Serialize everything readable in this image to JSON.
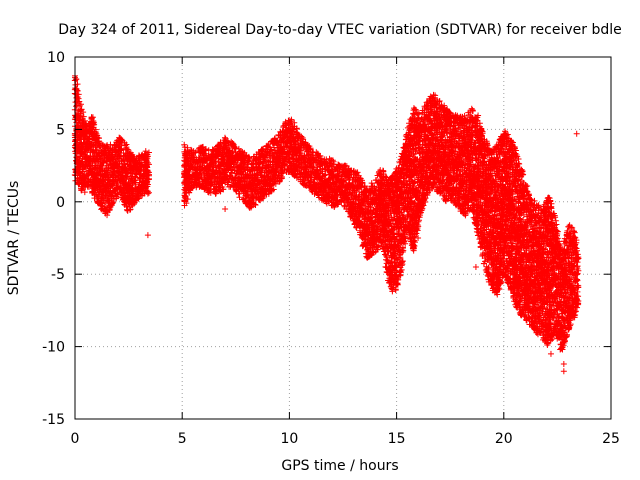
{
  "chart_data": {
    "type": "scatter",
    "title": "Day 324 of 2011, Sidereal Day-to-day VTEC variation (SDTVAR) for receiver bdle",
    "xlabel": "GPS time / hours",
    "ylabel": "SDTVAR / TECUs",
    "xlim": [
      0,
      25
    ],
    "ylim": [
      -15,
      10
    ],
    "x_ticks": [
      0,
      5,
      10,
      15,
      20,
      25
    ],
    "y_ticks": [
      -15,
      -10,
      -5,
      0,
      5,
      10
    ],
    "x_tick_labels": [
      "0",
      "5",
      "10",
      "15",
      "20",
      "25"
    ],
    "y_tick_labels": [
      "-15",
      "-10",
      "-5",
      "0",
      "5",
      "10"
    ],
    "grid": true,
    "legend": "none",
    "marker": "+",
    "color": "#ff0000",
    "series": [
      {
        "name": "SDTVAR",
        "envelope": [
          {
            "x": 0.0,
            "low": 1.5,
            "high": 9.0
          },
          {
            "x": 0.2,
            "low": 1.0,
            "high": 7.5
          },
          {
            "x": 0.4,
            "low": 0.5,
            "high": 6.0
          },
          {
            "x": 0.6,
            "low": 1.0,
            "high": 5.0
          },
          {
            "x": 0.8,
            "low": 0.5,
            "high": 6.0
          },
          {
            "x": 1.0,
            "low": 0.0,
            "high": 5.0
          },
          {
            "x": 1.2,
            "low": -0.5,
            "high": 4.0
          },
          {
            "x": 1.5,
            "low": -1.0,
            "high": 4.0
          },
          {
            "x": 1.8,
            "low": 0.0,
            "high": 4.0
          },
          {
            "x": 2.1,
            "low": 0.5,
            "high": 4.5
          },
          {
            "x": 2.4,
            "low": -0.5,
            "high": 4.0
          },
          {
            "x": 2.6,
            "low": -1.0,
            "high": 3.5
          },
          {
            "x": 2.8,
            "low": 0.0,
            "high": 3.0
          },
          {
            "x": 3.2,
            "low": 0.5,
            "high": 3.5
          },
          {
            "x": 3.4,
            "low": 1.0,
            "high": 3.5
          },
          {
            "x": 5.1,
            "low": -0.5,
            "high": 4.0
          },
          {
            "x": 5.5,
            "low": 1.0,
            "high": 3.5
          },
          {
            "x": 5.9,
            "low": 1.0,
            "high": 4.0
          },
          {
            "x": 6.3,
            "low": 0.5,
            "high": 3.5
          },
          {
            "x": 6.7,
            "low": 0.5,
            "high": 4.0
          },
          {
            "x": 7.0,
            "low": 1.0,
            "high": 4.5
          },
          {
            "x": 7.4,
            "low": 1.0,
            "high": 4.0
          },
          {
            "x": 7.8,
            "low": 0.0,
            "high": 3.5
          },
          {
            "x": 8.2,
            "low": -0.5,
            "high": 3.0
          },
          {
            "x": 8.6,
            "low": 0.0,
            "high": 3.5
          },
          {
            "x": 9.0,
            "low": 0.5,
            "high": 4.0
          },
          {
            "x": 9.4,
            "low": 1.0,
            "high": 4.5
          },
          {
            "x": 9.8,
            "low": 2.0,
            "high": 5.5
          },
          {
            "x": 10.1,
            "low": 2.0,
            "high": 5.8
          },
          {
            "x": 10.4,
            "low": 1.5,
            "high": 5.0
          },
          {
            "x": 10.8,
            "low": 1.0,
            "high": 4.0
          },
          {
            "x": 11.2,
            "low": 0.5,
            "high": 3.5
          },
          {
            "x": 11.6,
            "low": 0.0,
            "high": 3.0
          },
          {
            "x": 12.0,
            "low": -0.5,
            "high": 3.0
          },
          {
            "x": 12.4,
            "low": 0.0,
            "high": 2.5
          },
          {
            "x": 12.8,
            "low": -1.0,
            "high": 2.5
          },
          {
            "x": 13.2,
            "low": -2.0,
            "high": 2.0
          },
          {
            "x": 13.6,
            "low": -4.0,
            "high": 1.0
          },
          {
            "x": 14.0,
            "low": -3.5,
            "high": 1.5
          },
          {
            "x": 14.3,
            "low": -3.0,
            "high": 2.5
          },
          {
            "x": 14.6,
            "low": -5.5,
            "high": 1.5
          },
          {
            "x": 14.9,
            "low": -6.5,
            "high": 2.0
          },
          {
            "x": 15.2,
            "low": -5.0,
            "high": 3.0
          },
          {
            "x": 15.5,
            "low": -2.0,
            "high": 5.0
          },
          {
            "x": 15.8,
            "low": -3.5,
            "high": 6.5
          },
          {
            "x": 16.1,
            "low": -1.0,
            "high": 6.0
          },
          {
            "x": 16.4,
            "low": 0.0,
            "high": 7.0
          },
          {
            "x": 16.7,
            "low": 1.0,
            "high": 7.5
          },
          {
            "x": 17.0,
            "low": 0.5,
            "high": 7.0
          },
          {
            "x": 17.3,
            "low": 0.0,
            "high": 6.5
          },
          {
            "x": 17.6,
            "low": 0.0,
            "high": 6.0
          },
          {
            "x": 17.9,
            "low": -0.5,
            "high": 6.0
          },
          {
            "x": 18.2,
            "low": -1.0,
            "high": 6.0
          },
          {
            "x": 18.5,
            "low": -0.5,
            "high": 6.5
          },
          {
            "x": 18.8,
            "low": -2.5,
            "high": 6.0
          },
          {
            "x": 19.1,
            "low": -4.5,
            "high": 4.5
          },
          {
            "x": 19.4,
            "low": -6.0,
            "high": 3.5
          },
          {
            "x": 19.7,
            "low": -6.5,
            "high": 4.0
          },
          {
            "x": 20.0,
            "low": -5.0,
            "high": 5.0
          },
          {
            "x": 20.3,
            "low": -6.0,
            "high": 4.5
          },
          {
            "x": 20.6,
            "low": -7.5,
            "high": 3.5
          },
          {
            "x": 20.9,
            "low": -8.0,
            "high": 2.0
          },
          {
            "x": 21.2,
            "low": -8.5,
            "high": 0.5
          },
          {
            "x": 21.5,
            "low": -9.0,
            "high": 0.0
          },
          {
            "x": 21.8,
            "low": -9.5,
            "high": -0.5
          },
          {
            "x": 22.1,
            "low": -10.0,
            "high": 0.5
          },
          {
            "x": 22.4,
            "low": -9.0,
            "high": -1.0
          },
          {
            "x": 22.7,
            "low": -10.5,
            "high": -3.5
          },
          {
            "x": 23.0,
            "low": -9.0,
            "high": -1.5
          },
          {
            "x": 23.3,
            "low": -8.0,
            "high": -2.0
          },
          {
            "x": 23.5,
            "low": -7.0,
            "high": -3.5
          }
        ],
        "outliers": [
          {
            "x": 3.4,
            "y": -2.3
          },
          {
            "x": 7.0,
            "y": -0.5
          },
          {
            "x": 13.3,
            "y": -2.0
          },
          {
            "x": 15.8,
            "y": -3.0
          },
          {
            "x": 16.0,
            "y": -2.5
          },
          {
            "x": 18.7,
            "y": -4.5
          },
          {
            "x": 22.2,
            "y": -10.5
          },
          {
            "x": 22.8,
            "y": -11.2
          },
          {
            "x": 22.8,
            "y": -11.7
          },
          {
            "x": 23.4,
            "y": 4.7
          }
        ]
      }
    ]
  }
}
